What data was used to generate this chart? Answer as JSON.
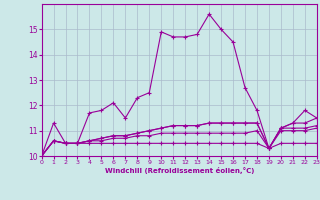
{
  "xlabel": "Windchill (Refroidissement éolien,°C)",
  "bg_color": "#cce8e8",
  "line_color": "#990099",
  "grid_color": "#aabbcc",
  "x_min": 0,
  "x_max": 23,
  "y_min": 10,
  "y_max": 16,
  "yticks": [
    10,
    11,
    12,
    13,
    14,
    15
  ],
  "series": [
    [
      10.0,
      11.3,
      10.5,
      10.5,
      11.7,
      11.8,
      12.1,
      11.5,
      12.3,
      12.5,
      14.9,
      14.7,
      14.7,
      14.8,
      15.6,
      15.0,
      14.5,
      12.7,
      11.8,
      10.3,
      11.1,
      11.3,
      11.8,
      11.5
    ],
    [
      10.0,
      10.6,
      10.5,
      10.5,
      10.6,
      10.7,
      10.8,
      10.8,
      10.9,
      11.0,
      11.1,
      11.2,
      11.2,
      11.2,
      11.3,
      11.3,
      11.3,
      11.3,
      11.3,
      10.3,
      11.1,
      11.3,
      11.3,
      11.5
    ],
    [
      10.0,
      10.6,
      10.5,
      10.5,
      10.6,
      10.7,
      10.8,
      10.8,
      10.9,
      11.0,
      11.1,
      11.2,
      11.2,
      11.2,
      11.3,
      11.3,
      11.3,
      11.3,
      11.3,
      10.3,
      11.1,
      11.1,
      11.1,
      11.2
    ],
    [
      10.0,
      10.6,
      10.5,
      10.5,
      10.6,
      10.6,
      10.7,
      10.7,
      10.8,
      10.8,
      10.9,
      10.9,
      10.9,
      10.9,
      10.9,
      10.9,
      10.9,
      10.9,
      11.0,
      10.3,
      11.0,
      11.0,
      11.0,
      11.1
    ],
    [
      10.0,
      10.6,
      10.5,
      10.5,
      10.5,
      10.5,
      10.5,
      10.5,
      10.5,
      10.5,
      10.5,
      10.5,
      10.5,
      10.5,
      10.5,
      10.5,
      10.5,
      10.5,
      10.5,
      10.3,
      10.5,
      10.5,
      10.5,
      10.5
    ]
  ]
}
